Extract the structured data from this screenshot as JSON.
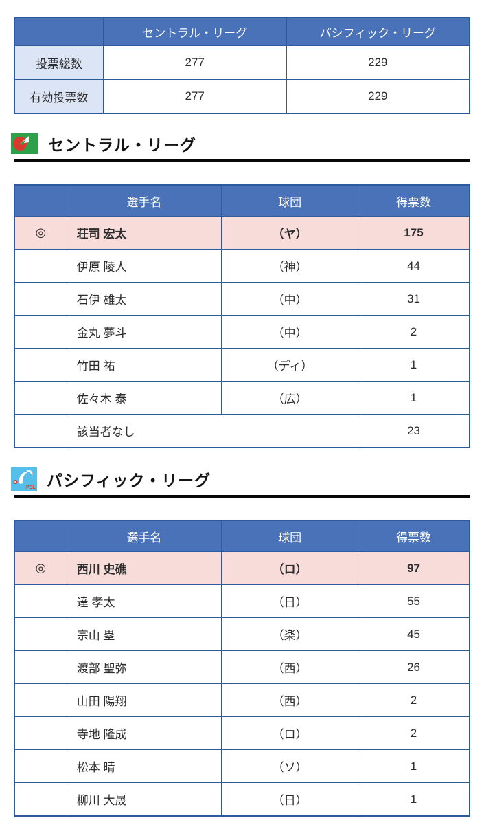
{
  "colors": {
    "header_blue": "#4a72b8",
    "label_blue": "#dbe5f5",
    "winner_pink": "#f8dcda",
    "border_blue": "#2e5a9b",
    "text_dark": "#2d2d2d",
    "rule_black": "#070707",
    "cl_green": "#2fa04a",
    "cl_red": "#d93a2e",
    "pl_blue": "#55bfe9",
    "pl_red": "#e03a2f"
  },
  "summary": {
    "col_headers": [
      "セントラル・リーグ",
      "パシフィック・リーグ"
    ],
    "rows": [
      {
        "label": "投票総数",
        "values": [
          "277",
          "229"
        ]
      },
      {
        "label": "有効投票数",
        "values": [
          "277",
          "229"
        ]
      }
    ]
  },
  "vote_table_headers": {
    "mark": "",
    "player": "選手名",
    "team": "球団",
    "votes": "得票数"
  },
  "central": {
    "title": "セントラル・リーグ",
    "icon": "central-league-logo",
    "rows": [
      {
        "mark": "◎",
        "player": "荘司 宏太",
        "team": "（ヤ）",
        "votes": "175",
        "winner": true
      },
      {
        "mark": "",
        "player": "伊原 陵人",
        "team": "（神）",
        "votes": "44",
        "winner": false
      },
      {
        "mark": "",
        "player": "石伊 雄太",
        "team": "（中）",
        "votes": "31",
        "winner": false
      },
      {
        "mark": "",
        "player": "金丸 夢斗",
        "team": "（中）",
        "votes": "2",
        "winner": false
      },
      {
        "mark": "",
        "player": "竹田 祐",
        "team": "（ディ）",
        "votes": "1",
        "winner": false
      },
      {
        "mark": "",
        "player": "佐々木 泰",
        "team": "（広）",
        "votes": "1",
        "winner": false
      },
      {
        "mark": "",
        "player": "該当者なし",
        "team": null,
        "votes": "23",
        "winner": false
      }
    ]
  },
  "pacific": {
    "title": "パシフィック・リーグ",
    "icon": "pacific-league-logo",
    "icon_label": "PBL",
    "rows": [
      {
        "mark": "◎",
        "player": "西川 史礁",
        "team": "（ロ）",
        "votes": "97",
        "winner": true
      },
      {
        "mark": "",
        "player": "達 孝太",
        "team": "（日）",
        "votes": "55",
        "winner": false
      },
      {
        "mark": "",
        "player": "宗山 塁",
        "team": "（楽）",
        "votes": "45",
        "winner": false
      },
      {
        "mark": "",
        "player": "渡部 聖弥",
        "team": "（西）",
        "votes": "26",
        "winner": false
      },
      {
        "mark": "",
        "player": "山田 陽翔",
        "team": "（西）",
        "votes": "2",
        "winner": false
      },
      {
        "mark": "",
        "player": "寺地 隆成",
        "team": "（ロ）",
        "votes": "2",
        "winner": false
      },
      {
        "mark": "",
        "player": "松本 晴",
        "team": "（ソ）",
        "votes": "1",
        "winner": false
      },
      {
        "mark": "",
        "player": "柳川 大晟",
        "team": "（日）",
        "votes": "1",
        "winner": false
      }
    ]
  }
}
